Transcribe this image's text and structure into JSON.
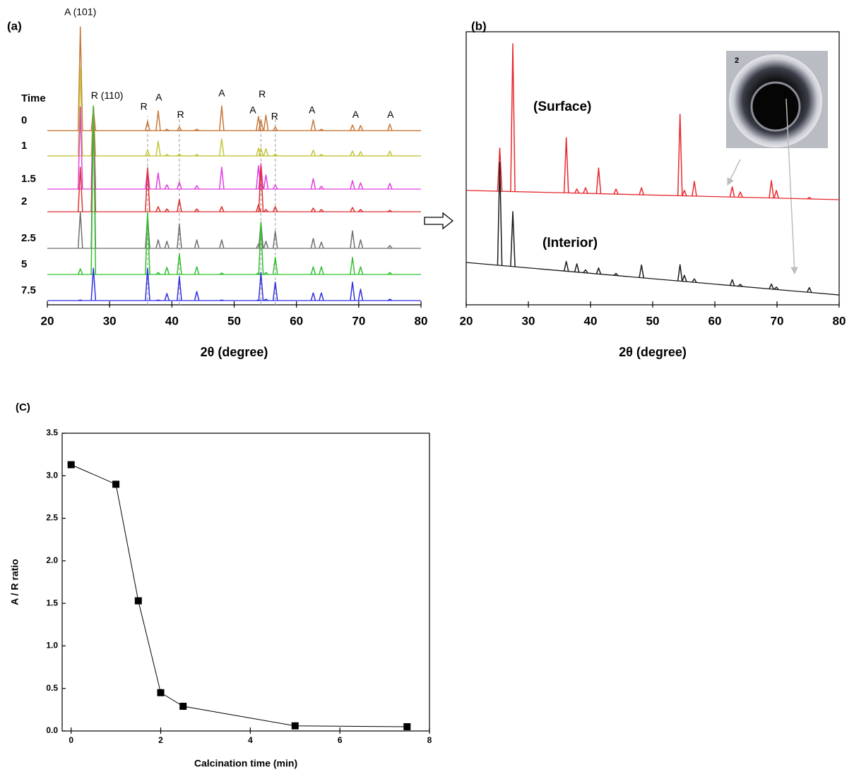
{
  "chart_data": [
    {
      "type": "spectrum",
      "title": "(a)",
      "xlabel": "2θ (degree)",
      "legend_title": "Time",
      "xlim": [
        20,
        80
      ],
      "xticks": [
        20,
        30,
        40,
        50,
        60,
        70,
        80
      ],
      "ylim": [
        0,
        100
      ],
      "x": [
        25.3,
        27.4,
        36.1,
        37.8,
        39.2,
        41.2,
        44.0,
        48.0,
        53.9,
        54.3,
        55.1,
        56.6,
        62.7,
        64.0,
        69.0,
        70.3,
        75.0
      ],
      "series": [
        {
          "name": "0",
          "color": "#c8783a",
          "baseline": [
            61.4,
            61.4
          ],
          "values": [
            98.0,
            68.9,
            64.7,
            68.4,
            61.9,
            62.7,
            61.9,
            70.1,
            66.4,
            65.2,
            66.9,
            62.7,
            65.2,
            61.9,
            63.4,
            63.2,
            63.7
          ]
        },
        {
          "name": "1",
          "color": "#c4c43a",
          "baseline": [
            52.5,
            52.5
          ],
          "values": [
            83.8,
            70.1,
            54.5,
            57.7,
            53.0,
            53.2,
            53.0,
            58.5,
            55.2,
            55.2,
            55.0,
            53.2,
            54.5,
            53.0,
            54.2,
            54.0,
            54.2
          ]
        },
        {
          "name": "1.5",
          "color": "#e040e0",
          "baseline": [
            40.8,
            40.8
          ],
          "values": [
            69.7,
            70.1,
            47.8,
            46.5,
            42.3,
            43.3,
            42.0,
            48.5,
            49.0,
            49.8,
            45.8,
            42.3,
            44.5,
            41.8,
            43.8,
            43.0,
            42.8
          ]
        },
        {
          "name": "2",
          "color": "#e03030",
          "baseline": [
            32.8,
            32.8
          ],
          "values": [
            48.5,
            70.1,
            48.3,
            34.6,
            33.8,
            37.1,
            33.8,
            34.6,
            35.3,
            49.0,
            33.6,
            34.6,
            34.1,
            33.6,
            34.3,
            33.6,
            33.3
          ]
        },
        {
          "name": "2.5",
          "color": "#707070",
          "baseline": [
            19.9,
            19.9
          ],
          "values": [
            32.8,
            70.1,
            31.6,
            22.9,
            22.4,
            28.4,
            22.9,
            22.9,
            21.4,
            29.1,
            22.4,
            25.9,
            23.4,
            22.1,
            26.1,
            22.9,
            20.9
          ]
        },
        {
          "name": "5",
          "color": "#30c030",
          "baseline": [
            10.7,
            10.7
          ],
          "values": [
            12.7,
            70.1,
            32.8,
            11.4,
            13.2,
            17.9,
            13.4,
            11.2,
            11.2,
            29.1,
            11.4,
            16.7,
            13.4,
            13.4,
            16.7,
            13.4,
            11.4
          ]
        },
        {
          "name": "7.5",
          "color": "#3030e0",
          "baseline": [
            1.5,
            1.5
          ],
          "values": [
            1.7,
            12.9,
            12.9,
            1.7,
            4.0,
            10.0,
            4.7,
            1.7,
            1.7,
            11.4,
            2.0,
            8.0,
            4.2,
            4.2,
            8.0,
            5.5,
            2.0
          ]
        }
      ],
      "reference_lines": [
        36.1,
        41.2,
        54.3,
        56.6
      ],
      "annotations": [
        {
          "text": "A (101)",
          "x": 25.3,
          "y": 103.0
        },
        {
          "text": "R (110)",
          "x": 29.6,
          "y": 73.6
        },
        {
          "text": "R",
          "x": 35.5,
          "y": 69.7
        },
        {
          "text": "A",
          "x": 37.9,
          "y": 72.9
        },
        {
          "text": "R",
          "x": 41.4,
          "y": 66.9
        },
        {
          "text": "A",
          "x": 48.0,
          "y": 74.4
        },
        {
          "text": "A",
          "x": 53.0,
          "y": 68.4
        },
        {
          "text": "R",
          "x": 54.5,
          "y": 74.1
        },
        {
          "text": "R",
          "x": 56.5,
          "y": 66.2
        },
        {
          "text": "A",
          "x": 62.5,
          "y": 68.4
        },
        {
          "text": "A",
          "x": 69.5,
          "y": 66.9
        },
        {
          "text": "A",
          "x": 75.1,
          "y": 66.9
        }
      ]
    },
    {
      "type": "spectrum",
      "title": "(b)",
      "xlabel": "2θ (degree)",
      "inset_label": "2",
      "xlim": [
        20,
        80
      ],
      "xticks": [
        20,
        30,
        40,
        50,
        60,
        70,
        80
      ],
      "ylim": [
        0,
        100
      ],
      "x": [
        25.4,
        27.5,
        36.1,
        37.8,
        39.2,
        41.3,
        44.1,
        48.2,
        54.4,
        55.1,
        56.7,
        62.8,
        64.1,
        69.1,
        69.9,
        75.2
      ],
      "series": [
        {
          "name": "(Surface)",
          "color": "#e8282e",
          "baseline": [
            41.9,
            38.5
          ],
          "values": [
            57.4,
            95.6,
            61.2,
            42.4,
            42.9,
            50.1,
            42.4,
            42.9,
            69.8,
            41.9,
            45.2,
            43.2,
            41.3,
            45.5,
            41.9,
            39.3
          ]
        },
        {
          "name": "(Interior)",
          "color": "#1a1a1a",
          "baseline": [
            15.5,
            3.6
          ],
          "values": [
            52.2,
            34.1,
            15.9,
            15.0,
            12.8,
            13.5,
            11.5,
            14.6,
            14.7,
            10.8,
            9.5,
            9.2,
            7.5,
            7.6,
            6.5,
            6.3
          ]
        }
      ]
    },
    {
      "type": "line",
      "title": "(C)",
      "xlabel": "Calcination time (min)",
      "ylabel": "A / R ratio",
      "color": "#000000",
      "xlim": [
        -0.2,
        8
      ],
      "xticks": [
        0,
        2,
        4,
        6,
        8
      ],
      "ylim": [
        0,
        3.5
      ],
      "yticks": [
        {
          "value": 0,
          "label": "0.0"
        },
        0.5,
        {
          "value": 1,
          "label": "1.0"
        },
        1.5,
        {
          "value": 2,
          "label": "2.0"
        },
        2.5,
        {
          "value": 3,
          "label": "3.0"
        },
        3.5
      ],
      "x": [
        0,
        1,
        1.5,
        2,
        2.5,
        5,
        7.5
      ],
      "values": [
        3.13,
        2.9,
        1.53,
        0.45,
        0.29,
        0.06,
        0.05
      ]
    }
  ]
}
